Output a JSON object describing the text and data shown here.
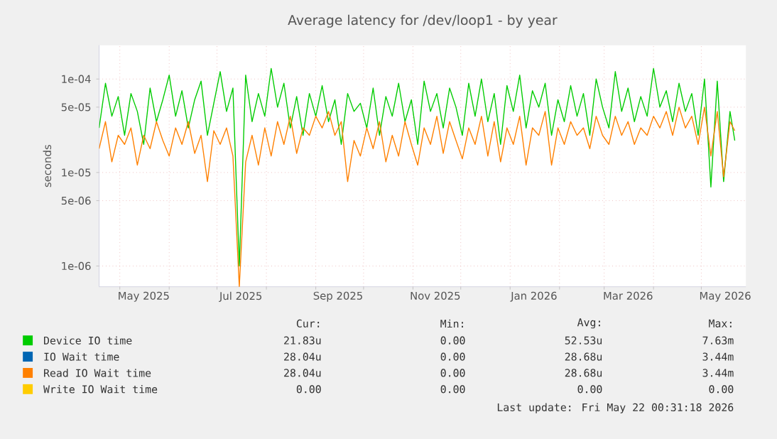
{
  "chart_data": {
    "type": "line",
    "title": "Average latency for /dev/loop1 - by year",
    "ylabel": "seconds",
    "log": "y",
    "grid": true,
    "legend": "bottom",
    "marker": "none",
    "line_style": "solid",
    "xlim": [
      "2025-04-18",
      "2026-05-29"
    ],
    "ylim": [
      6e-07,
      0.00023
    ],
    "xticks": [
      {
        "value": "2025-05-01",
        "label": null
      },
      {
        "value": "2025-06-01",
        "label": null
      },
      {
        "value": "2025-07-01",
        "label": null
      },
      {
        "value": "2025-08-01",
        "label": null
      },
      {
        "value": "2025-09-01",
        "label": null
      },
      {
        "value": "2025-10-01",
        "label": null
      },
      {
        "value": "2025-11-01",
        "label": null
      },
      {
        "value": "2025-12-01",
        "label": null
      },
      {
        "value": "2026-01-01",
        "label": null
      },
      {
        "value": "2026-02-01",
        "label": null
      },
      {
        "value": "2026-03-01",
        "label": null
      },
      {
        "value": "2026-04-01",
        "label": null
      },
      {
        "value": "2026-05-01",
        "label": null
      },
      {
        "value": "2025-05-16",
        "label": "May 2025"
      },
      {
        "value": "2025-07-16",
        "label": "Jul 2025"
      },
      {
        "value": "2025-09-15",
        "label": "Sep 2025"
      },
      {
        "value": "2025-11-15",
        "label": "Nov 2025"
      },
      {
        "value": "2026-01-16",
        "label": "Jan 2026"
      },
      {
        "value": "2026-03-16",
        "label": "Mar 2026"
      },
      {
        "value": "2026-05-16",
        "label": "May 2026"
      }
    ],
    "yticks": [
      {
        "value": 1e-06,
        "label": "1e-06"
      },
      {
        "value": 5e-06,
        "label": "5e-06"
      },
      {
        "value": 1e-05,
        "label": "1e-05"
      },
      {
        "value": 5e-05,
        "label": "5e-05"
      },
      {
        "value": 0.0001,
        "label": "1e-04"
      }
    ],
    "x": [
      "2025-04-18",
      "2025-04-22",
      "2025-04-26",
      "2025-04-30",
      "2025-05-04",
      "2025-05-08",
      "2025-05-12",
      "2025-05-16",
      "2025-05-20",
      "2025-05-24",
      "2025-05-28",
      "2025-06-01",
      "2025-06-05",
      "2025-06-09",
      "2025-06-13",
      "2025-06-17",
      "2025-06-21",
      "2025-06-25",
      "2025-06-29",
      "2025-07-03",
      "2025-07-07",
      "2025-07-11",
      "2025-07-15",
      "2025-07-19",
      "2025-07-23",
      "2025-07-27",
      "2025-07-31",
      "2025-08-04",
      "2025-08-08",
      "2025-08-12",
      "2025-08-16",
      "2025-08-20",
      "2025-08-24",
      "2025-08-28",
      "2025-09-01",
      "2025-09-05",
      "2025-09-09",
      "2025-09-13",
      "2025-09-17",
      "2025-09-21",
      "2025-09-25",
      "2025-09-29",
      "2025-10-03",
      "2025-10-07",
      "2025-10-11",
      "2025-10-15",
      "2025-10-19",
      "2025-10-23",
      "2025-10-27",
      "2025-10-31",
      "2025-11-04",
      "2025-11-08",
      "2025-11-12",
      "2025-11-16",
      "2025-11-20",
      "2025-11-24",
      "2025-11-28",
      "2025-12-02",
      "2025-12-06",
      "2025-12-10",
      "2025-12-14",
      "2025-12-18",
      "2025-12-22",
      "2025-12-26",
      "2025-12-30",
      "2026-01-03",
      "2026-01-07",
      "2026-01-11",
      "2026-01-15",
      "2026-01-19",
      "2026-01-23",
      "2026-01-27",
      "2026-01-31",
      "2026-02-04",
      "2026-02-08",
      "2026-02-12",
      "2026-02-16",
      "2026-02-20",
      "2026-02-24",
      "2026-02-28",
      "2026-03-04",
      "2026-03-08",
      "2026-03-12",
      "2026-03-16",
      "2026-03-20",
      "2026-03-24",
      "2026-03-28",
      "2026-04-01",
      "2026-04-05",
      "2026-04-09",
      "2026-04-13",
      "2026-04-17",
      "2026-04-21",
      "2026-04-25",
      "2026-04-29",
      "2026-05-03",
      "2026-05-07",
      "2026-05-11",
      "2026-05-15",
      "2026-05-19",
      "2026-05-22"
    ],
    "series": [
      {
        "name": "Device IO time",
        "color": "#00cc00",
        "values": [
          3e-05,
          9e-05,
          4e-05,
          6.5e-05,
          2.5e-05,
          7e-05,
          4.5e-05,
          2e-05,
          8e-05,
          3.5e-05,
          6e-05,
          0.00011,
          4e-05,
          7.5e-05,
          3e-05,
          6e-05,
          9.5e-05,
          2.5e-05,
          5.5e-05,
          0.00012,
          4.5e-05,
          8e-05,
          1e-06,
          0.00011,
          3.5e-05,
          7e-05,
          4e-05,
          0.00013,
          5e-05,
          9e-05,
          3e-05,
          6.5e-05,
          2.5e-05,
          7e-05,
          4e-05,
          8.5e-05,
          3.5e-05,
          6e-05,
          2e-05,
          7e-05,
          4.5e-05,
          5.5e-05,
          3e-05,
          8e-05,
          2.5e-05,
          6.5e-05,
          4e-05,
          9e-05,
          3.5e-05,
          6e-05,
          2e-05,
          9.5e-05,
          4.5e-05,
          7e-05,
          3e-05,
          8e-05,
          5e-05,
          2.5e-05,
          9e-05,
          4e-05,
          0.0001,
          3.5e-05,
          7e-05,
          2e-05,
          8.5e-05,
          4.5e-05,
          0.00011,
          3e-05,
          7.5e-05,
          5e-05,
          9e-05,
          2.5e-05,
          6e-05,
          3.5e-05,
          8.5e-05,
          4e-05,
          7e-05,
          2.5e-05,
          0.0001,
          5e-05,
          3e-05,
          0.00012,
          4.5e-05,
          8e-05,
          3.5e-05,
          6.5e-05,
          4e-05,
          0.00013,
          5e-05,
          7.5e-05,
          3.5e-05,
          9e-05,
          4.5e-05,
          7e-05,
          2.5e-05,
          0.0001,
          7e-06,
          9.5e-05,
          8e-06,
          4.5e-05,
          2.2e-05
        ]
      },
      {
        "name": "IO Wait time",
        "color": "#0066b3",
        "values": [
          null,
          null,
          null,
          null,
          null,
          null,
          null,
          null,
          null,
          null,
          null,
          null,
          null,
          null,
          null,
          null,
          null,
          null,
          null,
          null,
          null,
          null,
          null,
          null,
          null,
          null,
          null,
          null,
          null,
          null,
          null,
          null,
          null,
          null,
          null,
          null,
          null,
          null,
          null,
          null,
          null,
          null,
          null,
          null,
          null,
          null,
          null,
          null,
          null,
          null,
          null,
          null,
          null,
          null,
          null,
          null,
          null,
          null,
          null,
          null,
          null,
          null,
          null,
          null,
          null,
          null,
          null,
          null,
          null,
          null,
          null,
          null,
          null,
          null,
          null,
          null,
          null,
          null,
          null,
          null,
          null,
          null,
          null,
          null,
          null,
          null,
          null,
          null,
          null,
          null,
          null,
          null,
          null,
          null,
          null,
          null,
          null,
          null,
          null,
          null,
          null
        ]
      },
      {
        "name": "Read IO Wait time",
        "color": "#ff8000",
        "values": [
          1.8e-05,
          3.5e-05,
          1.3e-05,
          2.5e-05,
          2e-05,
          3e-05,
          1.2e-05,
          2.5e-05,
          1.8e-05,
          3.5e-05,
          2.2e-05,
          1.5e-05,
          3e-05,
          2e-05,
          3.5e-05,
          1.6e-05,
          2.5e-05,
          8e-06,
          2.8e-05,
          2e-05,
          3e-05,
          1.5e-05,
          6e-07,
          1.3e-05,
          2.5e-05,
          1.2e-05,
          3e-05,
          1.5e-05,
          3.5e-05,
          2e-05,
          4e-05,
          1.6e-05,
          3e-05,
          2.5e-05,
          4e-05,
          3e-05,
          4.5e-05,
          2.5e-05,
          3.5e-05,
          8e-06,
          2.2e-05,
          1.5e-05,
          3e-05,
          1.8e-05,
          3.5e-05,
          1.3e-05,
          2.5e-05,
          1.5e-05,
          3.5e-05,
          2e-05,
          1.2e-05,
          3e-05,
          2e-05,
          4e-05,
          1.6e-05,
          3.5e-05,
          2.2e-05,
          1.4e-05,
          3e-05,
          2e-05,
          4e-05,
          1.5e-05,
          3.5e-05,
          1.3e-05,
          3e-05,
          2e-05,
          4e-05,
          1.2e-05,
          3e-05,
          2.5e-05,
          4.5e-05,
          1.2e-05,
          3e-05,
          2e-05,
          3.5e-05,
          2.5e-05,
          3e-05,
          1.8e-05,
          4e-05,
          2.5e-05,
          2e-05,
          4e-05,
          2.5e-05,
          3.5e-05,
          2e-05,
          3e-05,
          2.5e-05,
          4e-05,
          3e-05,
          4.5e-05,
          2.5e-05,
          5e-05,
          3e-05,
          4e-05,
          2e-05,
          5e-05,
          1.5e-05,
          4.5e-05,
          9e-06,
          3.5e-05,
          2.8e-05
        ]
      },
      {
        "name": "Write IO Wait time",
        "color": "#ffcc00",
        "values": [
          null,
          null,
          null,
          null,
          null,
          null,
          null,
          null,
          null,
          null,
          null,
          null,
          null,
          null,
          null,
          null,
          null,
          null,
          null,
          null,
          null,
          null,
          null,
          null,
          null,
          null,
          null,
          null,
          null,
          null,
          null,
          null,
          null,
          null,
          null,
          null,
          null,
          null,
          null,
          null,
          null,
          null,
          null,
          null,
          null,
          null,
          null,
          null,
          null,
          null,
          null,
          null,
          null,
          null,
          null,
          null,
          null,
          null,
          null,
          null,
          null,
          null,
          null,
          null,
          null,
          null,
          null,
          null,
          null,
          null,
          null,
          null,
          null,
          null,
          null,
          null,
          null,
          null,
          null,
          null,
          null,
          null,
          null,
          null,
          null,
          null,
          null,
          null,
          null,
          null,
          null,
          null,
          null,
          null,
          null,
          null,
          null,
          null,
          null,
          null,
          null
        ]
      }
    ],
    "annotations": [
      "Cur:",
      "Min:",
      "Avg:",
      "Max:",
      "21.83u",
      "0.00",
      "52.53u",
      "7.63m",
      "28.04u",
      "0.00",
      "28.68u",
      "3.44m",
      "28.04u",
      "0.00",
      "28.68u",
      "3.44m",
      "0.00",
      "0.00",
      "0.00",
      "0.00",
      "Last update: Fri May 22 00:31:18 2026"
    ]
  }
}
